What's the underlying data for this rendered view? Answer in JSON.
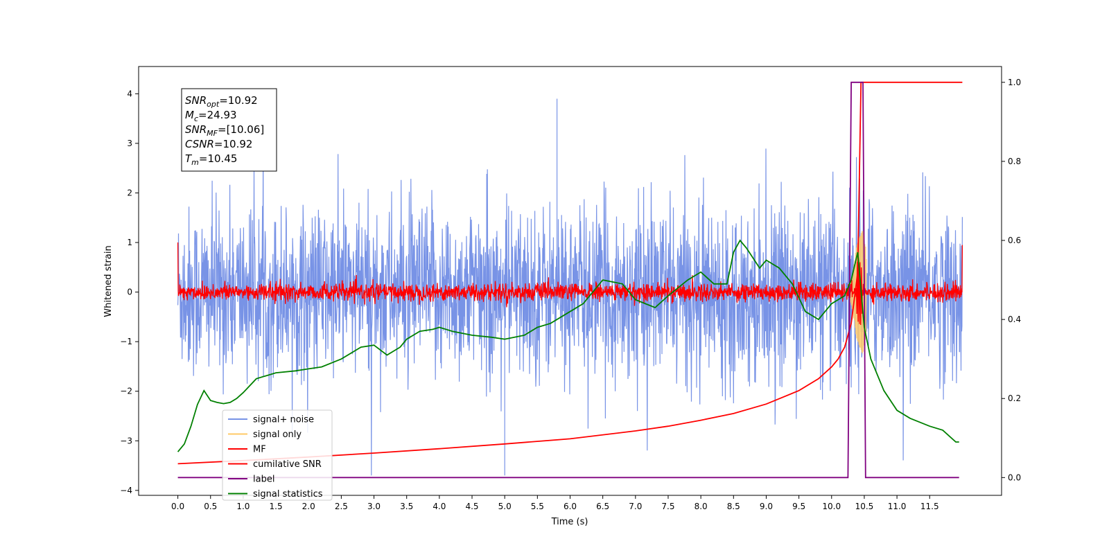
{
  "chart_data": {
    "type": "line",
    "xlabel": "Time (s)",
    "ylabel": "Whitened strain",
    "xlim": [
      -0.6,
      12.6
    ],
    "ylim_left": [
      -4.1,
      4.55
    ],
    "ylim_right": [
      -0.045,
      1.04
    ],
    "x_ticks": [
      "0.0",
      "0.5",
      "1.0",
      "1.5",
      "2.0",
      "2.5",
      "3.0",
      "3.5",
      "4.0",
      "4.5",
      "5.0",
      "5.5",
      "6.0",
      "6.5",
      "7.0",
      "7.5",
      "8.0",
      "8.5",
      "9.0",
      "9.5",
      "10.0",
      "10.5",
      "11.0",
      "11.5"
    ],
    "y_ticks_left": [
      "−4",
      "−3",
      "−2",
      "−1",
      "0",
      "1",
      "2",
      "3",
      "4"
    ],
    "y_ticks_right": [
      "0.0",
      "0.2",
      "0.4",
      "0.6",
      "0.8",
      "1.0"
    ],
    "annotation": {
      "lines": [
        {
          "base": "SNR",
          "sub": "opt",
          "value": "=10.92"
        },
        {
          "base": "M",
          "sub": "c",
          "value": "=24.93"
        },
        {
          "base": "SNR",
          "sub": "MF",
          "value": "=[10.06]"
        },
        {
          "base": "CSNR",
          "sub": "",
          "value": "=10.92"
        },
        {
          "base": "T",
          "sub": "m",
          "value": "=10.45"
        }
      ]
    },
    "legend": {
      "placement": "lower-left",
      "entries": [
        {
          "label": "signal+ noise",
          "color": "#7893e6"
        },
        {
          "label": "signal only",
          "color": "#ffc966"
        },
        {
          "label": "MF",
          "color": "#ff0000"
        },
        {
          "label": "cumilative SNR",
          "color": "#ff0000"
        },
        {
          "label": "label",
          "color": "#800080"
        },
        {
          "label": "signal statistics",
          "color": "#008000"
        }
      ]
    },
    "series": [
      {
        "name": "signal+ noise",
        "axis": "left",
        "kind": "noise",
        "color": "#7893e6",
        "x_range": [
          0.0,
          12.0
        ],
        "std": 0.85,
        "range": [
          -3.7,
          3.9
        ]
      },
      {
        "name": "signal only",
        "axis": "left",
        "kind": "chirp",
        "color": "#ffc966",
        "peak_time": 10.45,
        "peak_amp": 1.0
      },
      {
        "name": "MF",
        "axis": "left",
        "kind": "noise",
        "color": "#ff0000",
        "x_range": [
          0.0,
          12.0
        ],
        "std": 0.09
      },
      {
        "name": "cumilative SNR",
        "axis": "right",
        "color": "#ff0000",
        "x": [
          0.0,
          1.0,
          2.0,
          3.0,
          4.0,
          5.0,
          6.0,
          7.0,
          7.5,
          8.0,
          8.5,
          9.0,
          9.5,
          9.8,
          10.0,
          10.1,
          10.2,
          10.3,
          10.4,
          10.45,
          12.0
        ],
        "y": [
          0.035,
          0.043,
          0.052,
          0.062,
          0.073,
          0.085,
          0.098,
          0.118,
          0.13,
          0.145,
          0.162,
          0.186,
          0.22,
          0.25,
          0.28,
          0.3,
          0.33,
          0.39,
          0.52,
          1.0,
          1.0
        ]
      },
      {
        "name": "label",
        "axis": "right",
        "color": "#800080",
        "x": [
          0.0,
          10.25,
          10.3,
          10.48,
          10.52,
          11.95
        ],
        "y": [
          0.0,
          0.0,
          1.0,
          1.0,
          0.0,
          0.0
        ]
      },
      {
        "name": "signal statistics",
        "axis": "right",
        "color": "#008000",
        "x": [
          0.0,
          0.1,
          0.2,
          0.3,
          0.4,
          0.5,
          0.6,
          0.7,
          0.8,
          0.9,
          1.0,
          1.2,
          1.5,
          1.8,
          2.0,
          2.2,
          2.5,
          2.8,
          3.0,
          3.2,
          3.4,
          3.5,
          3.7,
          3.9,
          4.0,
          4.2,
          4.5,
          4.8,
          5.0,
          5.3,
          5.5,
          5.7,
          6.0,
          6.2,
          6.5,
          6.8,
          7.0,
          7.3,
          7.5,
          7.8,
          8.0,
          8.2,
          8.4,
          8.5,
          8.6,
          8.7,
          8.9,
          9.0,
          9.2,
          9.4,
          9.6,
          9.8,
          10.0,
          10.2,
          10.3,
          10.4,
          10.5,
          10.6,
          10.8,
          11.0,
          11.2,
          11.5,
          11.7,
          11.9,
          11.95
        ],
        "y": [
          0.065,
          0.085,
          0.13,
          0.185,
          0.22,
          0.195,
          0.19,
          0.187,
          0.19,
          0.2,
          0.215,
          0.25,
          0.265,
          0.27,
          0.275,
          0.28,
          0.3,
          0.33,
          0.335,
          0.31,
          0.33,
          0.35,
          0.37,
          0.375,
          0.38,
          0.37,
          0.36,
          0.355,
          0.35,
          0.36,
          0.38,
          0.39,
          0.42,
          0.44,
          0.5,
          0.49,
          0.45,
          0.43,
          0.46,
          0.5,
          0.52,
          0.49,
          0.49,
          0.57,
          0.6,
          0.58,
          0.53,
          0.55,
          0.53,
          0.49,
          0.42,
          0.4,
          0.44,
          0.46,
          0.5,
          0.57,
          0.38,
          0.3,
          0.22,
          0.17,
          0.15,
          0.13,
          0.12,
          0.09,
          0.09
        ]
      }
    ]
  }
}
